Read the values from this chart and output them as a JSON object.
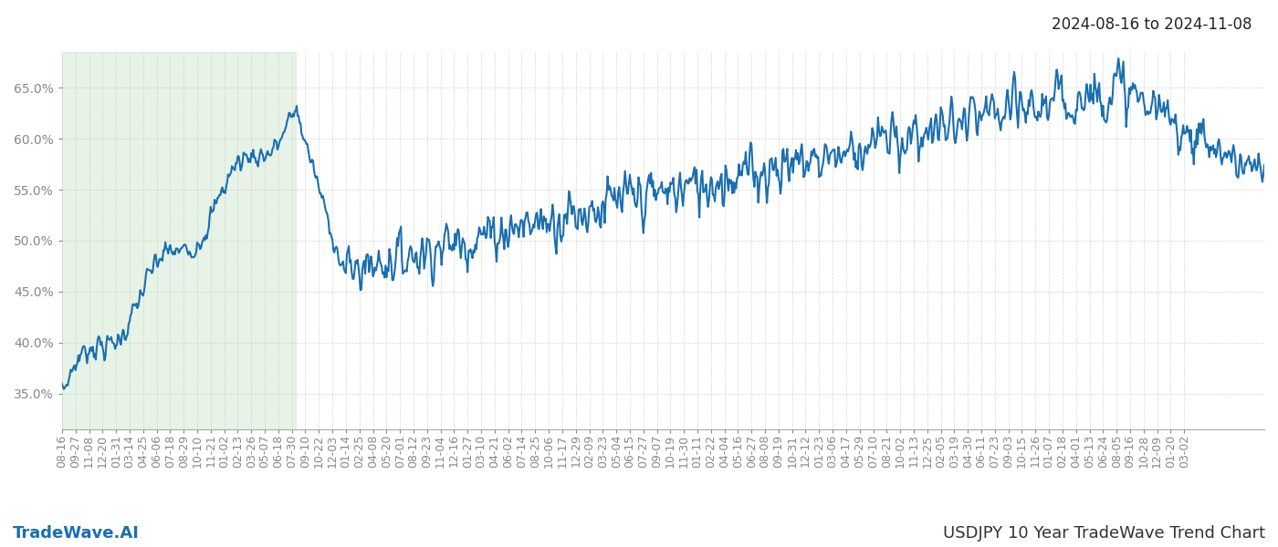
{
  "date_range_label": "2024-08-16 to 2024-11-08",
  "bottom_left_label": "TradeWave.AI",
  "bottom_right_label": "USDJPY 10 Year TradeWave Trend Chart",
  "background_color": "#ffffff",
  "line_color": "#1a6faf",
  "shaded_region_color": "#c8e6c9",
  "shaded_alpha": 0.45,
  "ytick_values": [
    0.35,
    0.4,
    0.45,
    0.5,
    0.55,
    0.6,
    0.65
  ],
  "ylim": [
    0.315,
    0.685
  ],
  "grid_color": "#cccccc",
  "grid_alpha": 0.8,
  "line_width": 1.5,
  "date_range_fontsize": 12,
  "label_fontsize": 13,
  "tick_fontsize": 9,
  "tick_color": "#888888"
}
